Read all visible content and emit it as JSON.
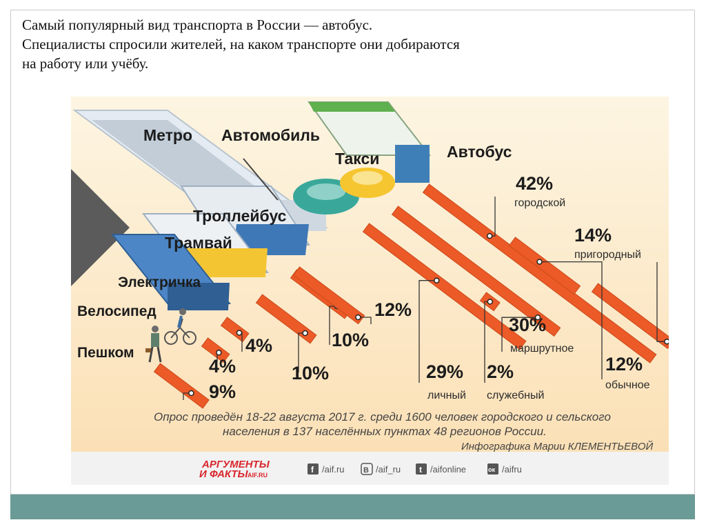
{
  "caption": {
    "line1": "Самый популярный вид транспорта в России — автобус.",
    "line2": "Специалисты спросили жителей, на каком транспорте они добираются",
    "line3": "на работу или учёбу."
  },
  "chart_data": {
    "type": "bar",
    "unit": "%",
    "categories": [
      "Пешком",
      "Велосипед",
      "Электричка",
      "Трамвай",
      "Троллейбус",
      "Метро",
      "Автомобиль",
      "Такси",
      "Автобус"
    ],
    "bars": [
      {
        "mode": "Пешком",
        "label": "9%",
        "value": 9,
        "note": ""
      },
      {
        "mode": "Велосипед",
        "label": "4%",
        "value": 4,
        "note": ""
      },
      {
        "mode": "Электричка",
        "label": "4%",
        "value": 4,
        "note": ""
      },
      {
        "mode": "Трамвай",
        "label": "10%",
        "value": 10,
        "note": ""
      },
      {
        "mode": "Троллейбус",
        "label": "10%",
        "value": 10,
        "note": ""
      },
      {
        "mode": "Метро",
        "label": "12%",
        "value": 12,
        "note": ""
      },
      {
        "mode": "Автомобиль",
        "label": "29%",
        "value": 29,
        "note": "личный"
      },
      {
        "mode": "Автомобиль",
        "label": "2%",
        "value": 2,
        "note": "служебный"
      },
      {
        "mode": "Такси",
        "label": "30%",
        "value": 30,
        "note": "маршрутное"
      },
      {
        "mode": "Автобус",
        "label": "42%",
        "value": 42,
        "note": "городской"
      },
      {
        "mode": "Автобус",
        "label": "14%",
        "value": 14,
        "note": "пригородный"
      },
      {
        "mode": "Автобус",
        "label": "12%",
        "value": 12,
        "note": "обычное"
      }
    ],
    "survey_note": {
      "line1": "Опрос проведён 18-22 августа 2017 г. среди 1600 человек городского и сельского",
      "line2": "населения в 137 населённых пунктах 48 регионов России.",
      "credit": "Инфографика Марии КЛЕМЕНТЬЕВОЙ"
    },
    "colors": {
      "bar": "#ec5a27",
      "bar_dark": "#c94a1c",
      "bg_top": "#fdf3dc",
      "bg_bottom": "#fbe1b8",
      "band": "#6b9b96"
    }
  },
  "publisher": {
    "logo_top": "АРГУМЕНТЫ",
    "logo_bottom": "И ФАКТЫ",
    "logo_site": "AIF.RU",
    "socials": [
      {
        "icon": "facebook-icon",
        "glyph": "f",
        "handle": "/aif.ru"
      },
      {
        "icon": "vk-icon",
        "glyph": "В",
        "handle": "/aif_ru"
      },
      {
        "icon": "twitter-icon",
        "glyph": "t",
        "handle": "/aifonline"
      },
      {
        "icon": "ok-icon",
        "glyph": "ок",
        "handle": "/aifru"
      }
    ]
  }
}
